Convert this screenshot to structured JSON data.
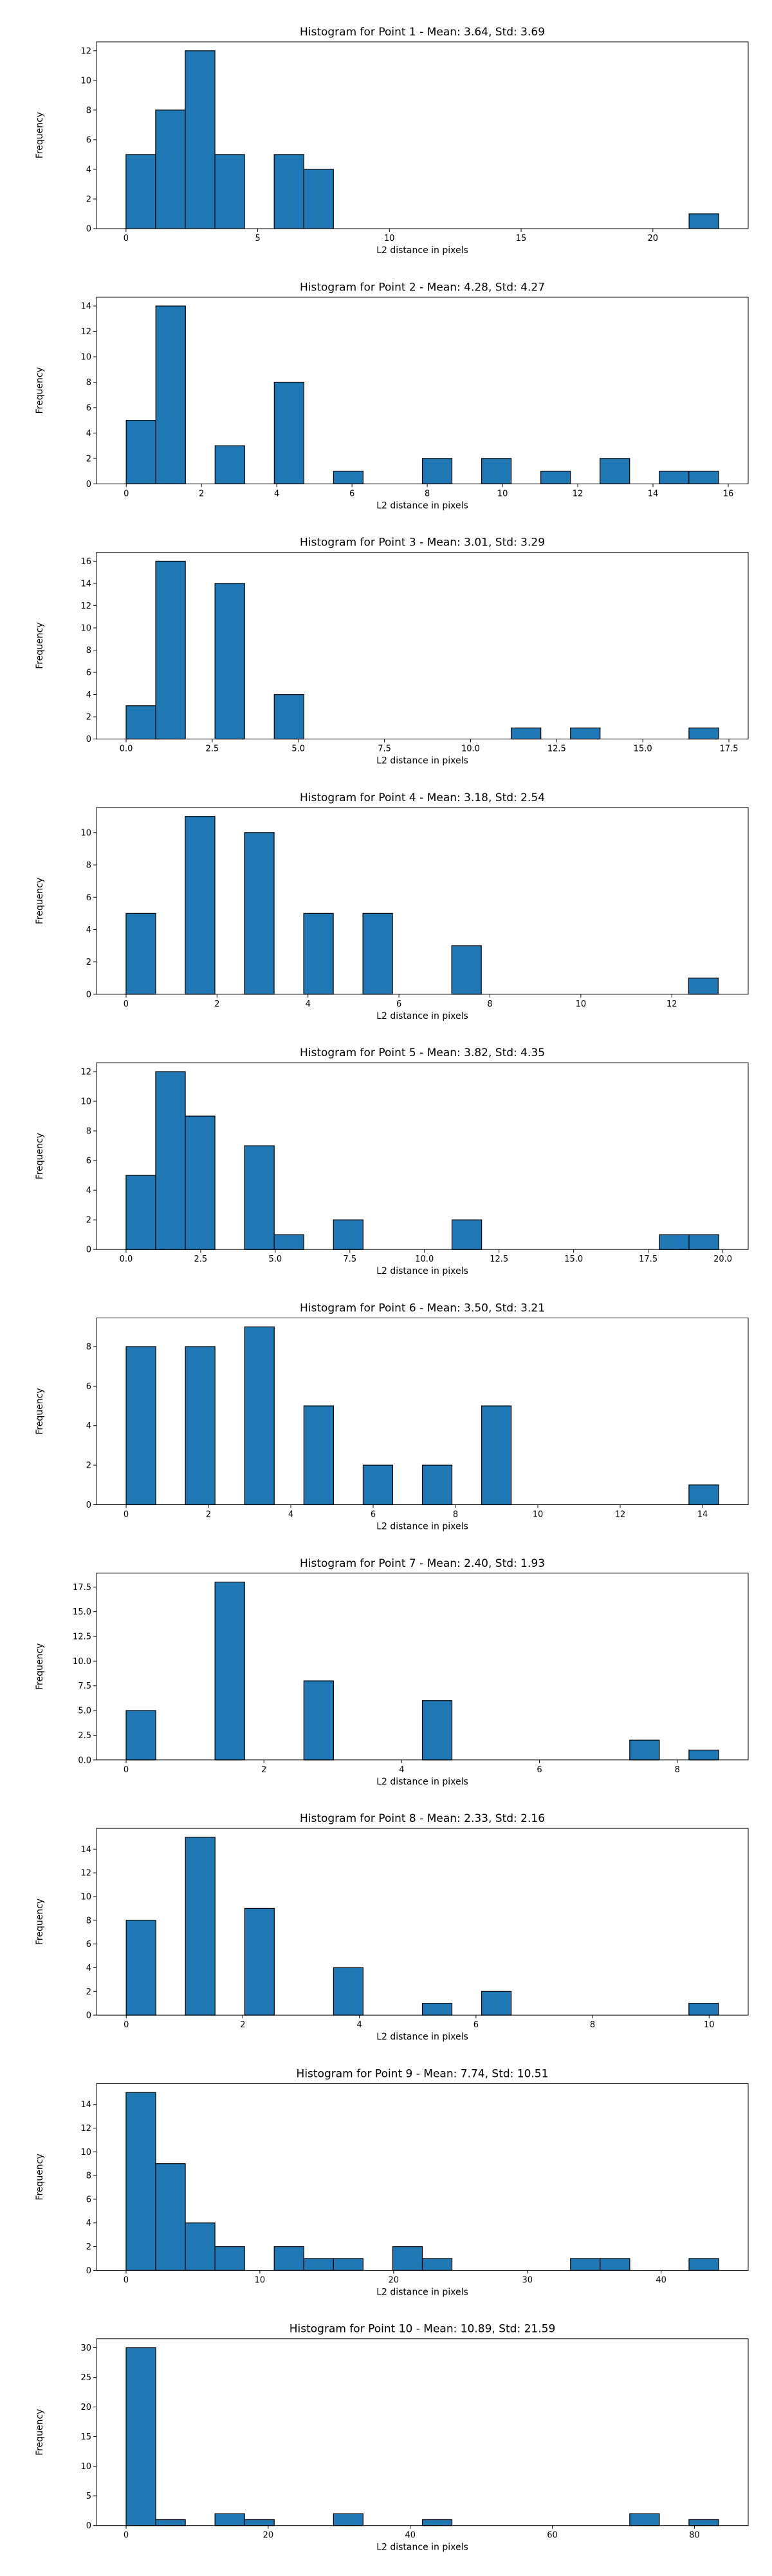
{
  "style": {
    "bar_color": "#1f77b4",
    "edge_color": "#000000",
    "background": "#ffffff"
  },
  "chart_data": [
    {
      "type": "bar",
      "title": "Histogram for Point 1 - Mean: 3.64, Std: 3.69",
      "xlabel": "L2 distance in pixels",
      "ylabel": "Frequency",
      "xlim": [
        -1.12,
        23.62
      ],
      "ylim": [
        0,
        12.6
      ],
      "xticks": [
        0,
        5,
        10,
        15,
        20
      ],
      "yticks": [
        0,
        2,
        4,
        6,
        8,
        10,
        12
      ],
      "bin_start": 0.0,
      "bin_width": 1.125,
      "values": [
        5,
        8,
        12,
        5,
        0,
        5,
        4,
        0,
        0,
        0,
        0,
        0,
        0,
        0,
        0,
        0,
        0,
        0,
        0,
        1
      ],
      "grid": false,
      "legend": "none"
    },
    {
      "type": "bar",
      "title": "Histogram for Point 2 - Mean: 4.28, Std: 4.27",
      "xlabel": "L2 distance in pixels",
      "ylabel": "Frequency",
      "xlim": [
        -0.79,
        16.53
      ],
      "ylim": [
        0,
        14.7
      ],
      "xticks": [
        0,
        2,
        4,
        6,
        8,
        10,
        12,
        14,
        16
      ],
      "yticks": [
        0,
        2,
        4,
        6,
        8,
        10,
        12,
        14
      ],
      "bin_start": 0.0,
      "bin_width": 0.787,
      "values": [
        5,
        14,
        0,
        3,
        0,
        8,
        0,
        1,
        0,
        0,
        2,
        0,
        2,
        0,
        1,
        0,
        2,
        0,
        1,
        1
      ],
      "grid": false,
      "legend": "none"
    },
    {
      "type": "bar",
      "title": "Histogram for Point 3 - Mean: 3.01, Std: 3.29",
      "xlabel": "L2 distance in pixels",
      "ylabel": "Frequency",
      "xlim": [
        -0.86,
        18.06
      ],
      "ylim": [
        0,
        16.8
      ],
      "xticks": [
        0.0,
        2.5,
        5.0,
        7.5,
        10.0,
        12.5,
        15.0,
        17.5
      ],
      "yticks": [
        0,
        2,
        4,
        6,
        8,
        10,
        12,
        14,
        16
      ],
      "bin_start": 0.0,
      "bin_width": 0.86,
      "values": [
        3,
        16,
        0,
        14,
        0,
        4,
        0,
        0,
        0,
        0,
        0,
        0,
        0,
        1,
        0,
        1,
        0,
        0,
        0,
        1
      ],
      "grid": false,
      "legend": "none"
    },
    {
      "type": "bar",
      "title": "Histogram for Point 4 - Mean: 3.18, Std: 2.54",
      "xlabel": "L2 distance in pixels",
      "ylabel": "Frequency",
      "xlim": [
        -0.65,
        13.68
      ],
      "ylim": [
        0,
        11.55
      ],
      "xticks": [
        0,
        2,
        4,
        6,
        8,
        10,
        12
      ],
      "yticks": [
        0,
        2,
        4,
        6,
        8,
        10
      ],
      "bin_start": 0.0,
      "bin_width": 0.651,
      "values": [
        5,
        0,
        11,
        0,
        10,
        0,
        5,
        0,
        5,
        0,
        0,
        3,
        0,
        0,
        0,
        0,
        0,
        0,
        0,
        1
      ],
      "grid": false,
      "legend": "none"
    },
    {
      "type": "bar",
      "title": "Histogram for Point 5 - Mean: 3.82, Std: 4.35",
      "xlabel": "L2 distance in pixels",
      "ylabel": "Frequency",
      "xlim": [
        -0.99,
        20.85
      ],
      "ylim": [
        0,
        12.6
      ],
      "xticks": [
        0.0,
        2.5,
        5.0,
        7.5,
        10.0,
        12.5,
        15.0,
        17.5,
        20.0
      ],
      "yticks": [
        0,
        2,
        4,
        6,
        8,
        10,
        12
      ],
      "bin_start": 0.0,
      "bin_width": 0.993,
      "values": [
        5,
        12,
        9,
        0,
        7,
        1,
        0,
        2,
        0,
        0,
        0,
        2,
        0,
        0,
        0,
        0,
        0,
        0,
        1,
        1
      ],
      "grid": false,
      "legend": "none"
    },
    {
      "type": "bar",
      "title": "Histogram for Point 6 - Mean: 3.50, Std: 3.21",
      "xlabel": "L2 distance in pixels",
      "ylabel": "Frequency",
      "xlim": [
        -0.72,
        15.11
      ],
      "ylim": [
        0,
        9.45
      ],
      "xticks": [
        0,
        2,
        4,
        6,
        8,
        10,
        12,
        14
      ],
      "yticks": [
        0,
        2,
        4,
        6,
        8
      ],
      "bin_start": 0.0,
      "bin_width": 0.7195,
      "values": [
        8,
        0,
        8,
        0,
        9,
        0,
        5,
        0,
        2,
        0,
        2,
        0,
        5,
        0,
        0,
        0,
        0,
        0,
        0,
        1
      ],
      "grid": false,
      "legend": "none"
    },
    {
      "type": "bar",
      "title": "Histogram for Point 7 - Mean: 2.40, Std: 1.93",
      "xlabel": "L2 distance in pixels",
      "ylabel": "Frequency",
      "xlim": [
        -0.43,
        9.03
      ],
      "ylim": [
        0,
        18.9
      ],
      "xticks": [
        0,
        2,
        4,
        6,
        8
      ],
      "yticks": [
        0.0,
        2.5,
        5.0,
        7.5,
        10.0,
        12.5,
        15.0,
        17.5
      ],
      "bin_start": 0.0,
      "bin_width": 0.43,
      "values": [
        5,
        0,
        0,
        18,
        0,
        0,
        8,
        0,
        0,
        0,
        6,
        0,
        0,
        0,
        0,
        0,
        0,
        2,
        0,
        1
      ],
      "grid": false,
      "legend": "none"
    },
    {
      "type": "bar",
      "title": "Histogram for Point 8 - Mean: 2.33, Std: 2.16",
      "xlabel": "L2 distance in pixels",
      "ylabel": "Frequency",
      "xlim": [
        -0.51,
        10.67
      ],
      "ylim": [
        0,
        15.75
      ],
      "xticks": [
        0,
        2,
        4,
        6,
        8,
        10
      ],
      "yticks": [
        0,
        2,
        4,
        6,
        8,
        10,
        12,
        14
      ],
      "bin_start": 0.0,
      "bin_width": 0.508,
      "values": [
        8,
        0,
        15,
        0,
        9,
        0,
        0,
        4,
        0,
        0,
        1,
        0,
        2,
        0,
        0,
        0,
        0,
        0,
        0,
        1
      ],
      "grid": false,
      "legend": "none"
    },
    {
      "type": "bar",
      "title": "Histogram for Point 9 - Mean: 7.74, Std: 10.51",
      "xlabel": "L2 distance in pixels",
      "ylabel": "Frequency",
      "xlim": [
        -2.21,
        46.51
      ],
      "ylim": [
        0,
        15.75
      ],
      "xticks": [
        0,
        10,
        20,
        30,
        40
      ],
      "yticks": [
        0,
        2,
        4,
        6,
        8,
        10,
        12,
        14
      ],
      "bin_start": 0.0,
      "bin_width": 2.215,
      "values": [
        15,
        9,
        4,
        2,
        0,
        2,
        1,
        1,
        0,
        2,
        1,
        0,
        0,
        0,
        0,
        1,
        1,
        0,
        0,
        1
      ],
      "grid": false,
      "legend": "none"
    },
    {
      "type": "bar",
      "title": "Histogram for Point 10 - Mean: 10.89, Std: 21.59",
      "xlabel": "L2 distance in pixels",
      "ylabel": "Frequency",
      "xlim": [
        -4.17,
        87.57
      ],
      "ylim": [
        0,
        31.5
      ],
      "xticks": [
        0,
        20,
        40,
        60,
        80
      ],
      "yticks": [
        0,
        5,
        10,
        15,
        20,
        25,
        30
      ],
      "bin_start": 0.0,
      "bin_width": 4.17,
      "values": [
        30,
        1,
        0,
        2,
        1,
        0,
        0,
        2,
        0,
        0,
        1,
        0,
        0,
        0,
        0,
        0,
        0,
        2,
        0,
        1
      ],
      "grid": false,
      "legend": "none"
    }
  ]
}
